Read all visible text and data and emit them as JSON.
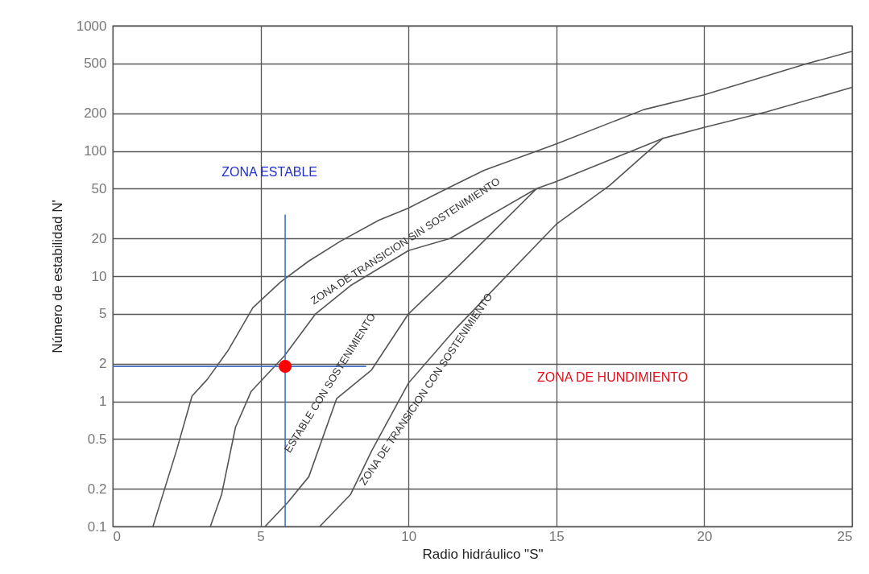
{
  "chart_data": {
    "type": "line",
    "xlabel": "Radio hidráulico \"S\"",
    "ylabel": "Número de estabilidad N'",
    "xlim": [
      0,
      25
    ],
    "xticks": [
      0,
      5,
      10,
      15,
      20,
      25
    ],
    "ylim": [
      0.1,
      1000
    ],
    "yticks": [
      0.1,
      0.2,
      0.5,
      1,
      2,
      5,
      10,
      20,
      50,
      100,
      200,
      500,
      1000
    ],
    "log": "y",
    "grid": true,
    "marker": "none",
    "line_style": "solid",
    "series": [
      {
        "color": "#555555",
        "x": [
          1.36,
          2.15,
          2.68,
          3.2,
          3.9,
          4.74,
          5.68,
          6.63,
          7.7,
          9.0,
          10,
          11.3,
          12.56,
          15,
          17.96,
          20,
          23.5,
          25
        ],
        "values": [
          0.1,
          0.4,
          1.1,
          1.5,
          2.55,
          5.6,
          9,
          13.2,
          19,
          28,
          35,
          50,
          70,
          114,
          214,
          281,
          500,
          625
        ]
      },
      {
        "color": "#555555",
        "x": [
          3.3,
          3.68,
          4.15,
          4.68,
          5.8,
          6.86,
          8.04,
          10,
          11.4,
          14.33,
          15,
          18.6,
          20,
          22.1,
          25
        ],
        "values": [
          0.1,
          0.18,
          0.62,
          1.2,
          2.3,
          5,
          8.4,
          16,
          20,
          50,
          57,
          126,
          154,
          205,
          322
        ]
      },
      {
        "color": "#555555",
        "x": [
          5.15,
          5.92,
          6.63,
          7.57,
          8.75,
          10,
          11.64,
          14.33
        ],
        "values": [
          0.1,
          0.156,
          0.25,
          1.05,
          1.78,
          5,
          11.7,
          50
        ]
      },
      {
        "color": "#555555",
        "x": [
          7.0,
          8.04,
          8.75,
          10,
          11.64,
          15,
          16.8,
          18.6
        ],
        "values": [
          0.1,
          0.18,
          0.4,
          1.4,
          3.9,
          26,
          53,
          126
        ]
      },
      {
        "color": "#4472c4",
        "x": [
          5.83,
          5.83
        ],
        "values": [
          0.1,
          31
        ]
      },
      {
        "color": "#4472c4",
        "x": [
          0,
          8.57
        ],
        "values": [
          1.9,
          1.9
        ]
      },
      {
        "type": "scatter",
        "marker": "circle",
        "color": "#ff0000",
        "x": [
          5.83
        ],
        "values": [
          1.9
        ]
      }
    ],
    "annotations": [
      "ZONA ESTABLE",
      "ZONA DE HUNDIMIENTO",
      "ZONA DE TRANSICION   SIN SOSTENIMIENTO",
      "ESTABLE CON SOSTENIMIENTO",
      "ZONA DE TRANSICION   CON SOSTENIMIENTO"
    ]
  }
}
